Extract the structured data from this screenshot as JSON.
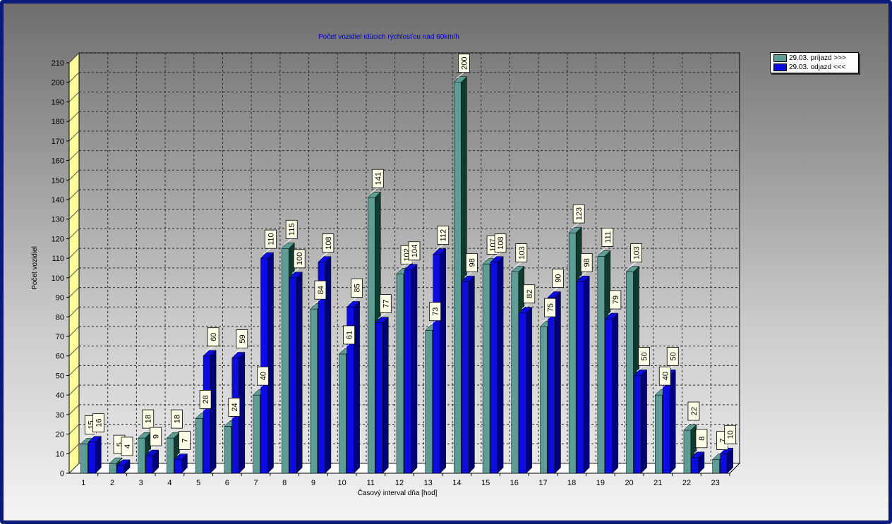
{
  "chart_data": {
    "type": "bar",
    "title": "Počet vozidiel idúcich rýchlosťou nad 60km/h",
    "xlabel": "Časový interval dňa [hod]",
    "ylabel": "Počet vozidiel",
    "ylim": [
      0,
      210
    ],
    "ytick_step": 10,
    "yticks": [
      "0",
      "10",
      "20",
      "30",
      "40",
      "50",
      "60",
      "70",
      "80",
      "90",
      "100",
      "110",
      "120",
      "130",
      "140",
      "150",
      "160",
      "170",
      "180",
      "190",
      "200",
      "210"
    ],
    "grid": true,
    "legend_position": "top-right",
    "categories": [
      "1",
      "2",
      "3",
      "4",
      "5",
      "6",
      "7",
      "8",
      "9",
      "10",
      "11",
      "12",
      "13",
      "14",
      "15",
      "16",
      "17",
      "18",
      "19",
      "20",
      "21",
      "22",
      "23"
    ],
    "series": [
      {
        "name": "29.03.  príjazd >>>",
        "color": "#5e9c96",
        "side_color": "#0e3a30",
        "values": [
          15,
          5,
          18,
          18,
          28,
          24,
          40,
          115,
          84,
          61,
          141,
          102,
          73,
          200,
          107,
          103,
          75,
          123,
          111,
          103,
          40,
          22,
          7
        ],
        "labels": [
          "15",
          "5",
          "18",
          "18",
          "28",
          "24",
          "40",
          "115",
          "84",
          "61",
          "141",
          "102",
          "73",
          "200",
          "107",
          "103",
          "75",
          "123",
          "111",
          "103",
          "40",
          "22",
          "7"
        ]
      },
      {
        "name": "29.03.  odjazd <<<",
        "color": "#0c0ce0",
        "side_color": "#00007a",
        "values": [
          16,
          4,
          9,
          7,
          60,
          59,
          110,
          100,
          108,
          85,
          77,
          104,
          112,
          98,
          108,
          82,
          90,
          98,
          79,
          50,
          50,
          8,
          10
        ],
        "labels": [
          "16",
          "4",
          "9",
          "7",
          "60",
          "59",
          "110",
          "100",
          "108",
          "85",
          "77",
          "104",
          "112",
          "98",
          "108",
          "82",
          "90",
          "98",
          "79",
          "50",
          "50",
          "8",
          "10"
        ]
      }
    ]
  }
}
